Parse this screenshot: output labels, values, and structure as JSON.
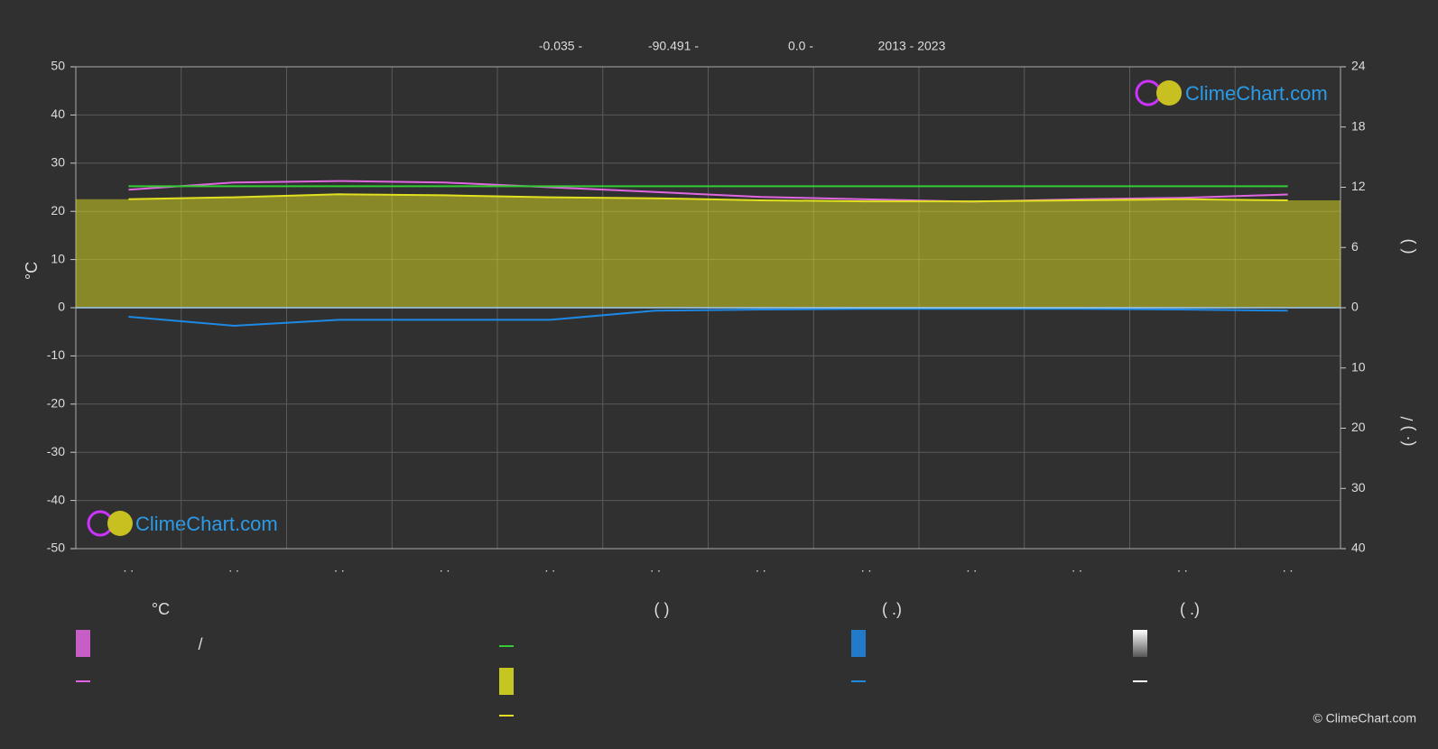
{
  "header": [
    "-0.035 -",
    "-90.491 -",
    "0.0 -",
    "2013 - 2023"
  ],
  "watermark": "ClimeChart.com",
  "copyright": "© ClimeChart.com",
  "legend_headers": [
    "°C",
    "(          )",
    "(   .)",
    "(   .)"
  ],
  "legend_note": "/",
  "chart_data": {
    "type": "line",
    "ylabel": "°C",
    "y2label": "(          )",
    "y3label": "(· )          /",
    "categories": [
      ". .",
      ". .",
      ". .",
      ". .",
      ". .",
      ". .",
      ". .",
      ". .",
      ". .",
      ". .",
      ". .",
      ". ."
    ],
    "ylim": [
      -50,
      50
    ],
    "yticks": [
      -50,
      -40,
      -30,
      -20,
      -10,
      0,
      10,
      20,
      30,
      40,
      50
    ],
    "y2lim": [
      0,
      24
    ],
    "y2ticks": [
      0,
      6,
      12,
      18,
      24
    ],
    "y3lim": [
      0,
      40
    ],
    "y3ticks": [
      10,
      20,
      30,
      40
    ],
    "grid": true,
    "series": [
      {
        "color": "#e066e0",
        "values": [
          24.5,
          26,
          26.3,
          26,
          25,
          24,
          23,
          22.5,
          22,
          22.5,
          22.8,
          23.5
        ]
      },
      {
        "color": "#33cc33",
        "axis": "y2",
        "values": [
          12.1,
          12.1,
          12.1,
          12.1,
          12.1,
          12.1,
          12.1,
          12.1,
          12.1,
          12.1,
          12.1,
          12.1
        ]
      },
      {
        "color": "#e0e020",
        "axis": "y2",
        "area": true,
        "values": [
          10.8,
          11,
          11.3,
          11.2,
          11,
          10.9,
          10.7,
          10.6,
          10.6,
          10.7,
          10.8,
          10.7
        ]
      },
      {
        "color": "#1e88e5",
        "axis": "y3",
        "values": [
          1.5,
          3,
          2,
          2,
          2,
          0.5,
          0.3,
          0.2,
          0.2,
          0.2,
          0.3,
          0.5
        ]
      }
    ]
  }
}
